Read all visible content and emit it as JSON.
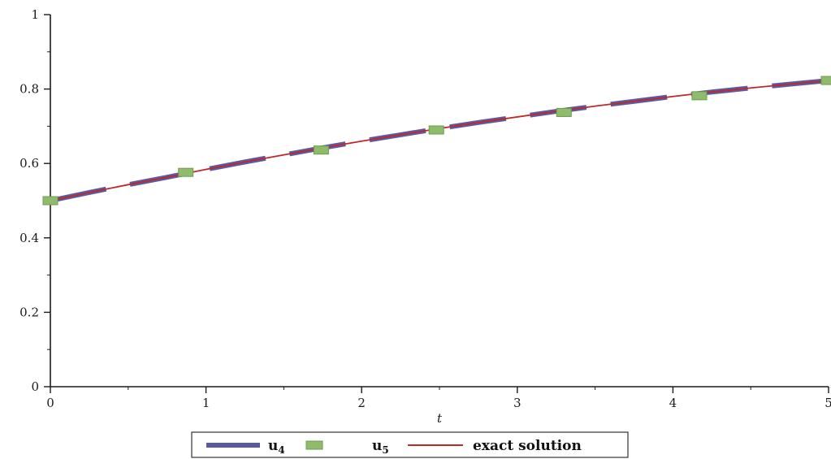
{
  "chart_data": {
    "type": "line",
    "xlabel": "t",
    "ylabel": "",
    "xlim": [
      0,
      5
    ],
    "ylim": [
      0,
      1
    ],
    "x_ticks": [
      "0",
      "1",
      "2",
      "3",
      "4",
      "5"
    ],
    "y_ticks": [
      "0",
      "0.2",
      "0.4",
      "0.6",
      "0.8",
      "1"
    ],
    "grid": false,
    "legend_position": "bottom",
    "series": [
      {
        "name": "u",
        "name_sub": "4",
        "color": "#5a5aa0",
        "style": "thick-dash",
        "x": [
          0.0,
          0.25,
          0.5,
          0.75,
          1.0,
          1.25,
          1.5,
          1.75,
          2.0,
          2.25,
          2.5,
          2.75,
          3.0,
          3.25,
          3.5,
          3.75,
          4.0,
          4.25,
          4.5,
          4.75,
          5.0
        ],
        "y": [
          0.5,
          0.522,
          0.543,
          0.563,
          0.584,
          0.604,
          0.623,
          0.642,
          0.66,
          0.677,
          0.694,
          0.71,
          0.725,
          0.74,
          0.754,
          0.767,
          0.78,
          0.792,
          0.803,
          0.813,
          0.823
        ]
      },
      {
        "name": "u",
        "name_sub": "5",
        "color": "#8fbc6a",
        "style": "square-markers",
        "x": [
          0.0,
          0.87,
          1.74,
          2.48,
          3.3,
          4.17,
          5.0
        ],
        "y": [
          0.5,
          0.576,
          0.636,
          0.69,
          0.737,
          0.782,
          0.823
        ]
      },
      {
        "name": "exact solution",
        "color": "#c0282a",
        "style": "solid",
        "x": [
          0.0,
          0.25,
          0.5,
          0.75,
          1.0,
          1.25,
          1.5,
          1.75,
          2.0,
          2.25,
          2.5,
          2.75,
          3.0,
          3.25,
          3.5,
          3.75,
          4.0,
          4.25,
          4.5,
          4.75,
          5.0
        ],
        "y": [
          0.5,
          0.522,
          0.543,
          0.563,
          0.584,
          0.604,
          0.623,
          0.642,
          0.66,
          0.677,
          0.694,
          0.71,
          0.725,
          0.74,
          0.754,
          0.767,
          0.78,
          0.792,
          0.803,
          0.813,
          0.823
        ]
      }
    ]
  }
}
